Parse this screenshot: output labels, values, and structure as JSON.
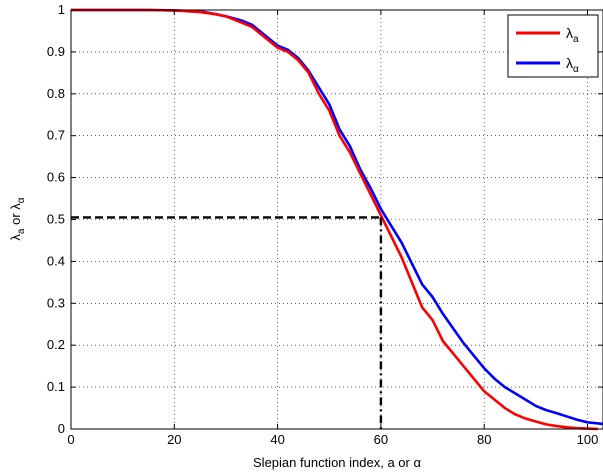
{
  "chart_data": {
    "type": "line",
    "xlabel": "Slepian function index, a or α",
    "ylabel": {
      "prefix": "λ",
      "sub1": "a",
      "mid": " or λ",
      "sub2": "α"
    },
    "xlim": [
      0,
      103
    ],
    "ylim": [
      0,
      1
    ],
    "xticks": [
      "0",
      "20",
      "40",
      "60",
      "80",
      "100"
    ],
    "yticks": [
      "0",
      "0.1",
      "0.2",
      "0.3",
      "0.4",
      "0.5",
      "0.6",
      "0.7",
      "0.8",
      "0.9",
      "1"
    ],
    "grid": true,
    "legend_position": "top-right",
    "series": [
      {
        "name": {
          "base": "λ",
          "sub": "a"
        },
        "color": "#ff0000",
        "x": [
          0,
          15,
          20,
          25,
          28,
          30,
          33,
          35,
          37,
          40,
          42,
          44,
          46,
          48,
          50,
          52,
          54,
          56,
          58,
          60,
          62,
          64,
          66,
          68,
          70,
          72,
          74,
          76,
          78,
          80,
          82,
          84,
          86,
          88,
          90,
          92,
          94,
          96,
          98,
          100,
          102
        ],
        "y": [
          1.0,
          1.0,
          0.999,
          0.995,
          0.99,
          0.985,
          0.97,
          0.96,
          0.94,
          0.91,
          0.9,
          0.88,
          0.85,
          0.8,
          0.76,
          0.7,
          0.66,
          0.61,
          0.56,
          0.51,
          0.46,
          0.41,
          0.35,
          0.29,
          0.26,
          0.21,
          0.18,
          0.15,
          0.12,
          0.09,
          0.07,
          0.05,
          0.035,
          0.025,
          0.018,
          0.011,
          0.007,
          0.004,
          0.002,
          0.001,
          0.0
        ]
      },
      {
        "name": {
          "base": "λ",
          "sub": "α"
        },
        "color": "#0000ff",
        "x": [
          0,
          15,
          20,
          25,
          28,
          30,
          33,
          35,
          37,
          40,
          42,
          44,
          46,
          48,
          50,
          52,
          54,
          56,
          58,
          60,
          62,
          64,
          66,
          68,
          70,
          72,
          74,
          76,
          78,
          80,
          82,
          84,
          86,
          88,
          90,
          92,
          94,
          96,
          98,
          100,
          103
        ],
        "y": [
          1.0,
          1.0,
          0.999,
          0.997,
          0.99,
          0.985,
          0.975,
          0.965,
          0.945,
          0.915,
          0.905,
          0.885,
          0.855,
          0.815,
          0.775,
          0.715,
          0.675,
          0.62,
          0.575,
          0.525,
          0.485,
          0.445,
          0.395,
          0.345,
          0.315,
          0.275,
          0.24,
          0.205,
          0.175,
          0.145,
          0.12,
          0.1,
          0.085,
          0.07,
          0.055,
          0.045,
          0.038,
          0.03,
          0.022,
          0.016,
          0.012
        ]
      }
    ],
    "reference_lines": {
      "x": 60,
      "y": 0.505,
      "color": "#000000"
    }
  }
}
